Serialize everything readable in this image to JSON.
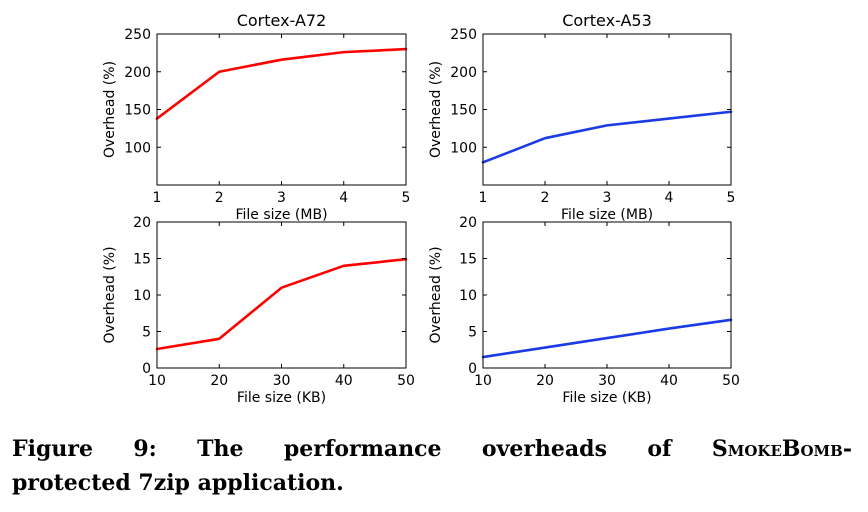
{
  "chart_data": [
    {
      "type": "line",
      "title": "Cortex-A72",
      "xlabel": "File size (MB)",
      "ylabel": "Overhead (%)",
      "x": [
        1,
        2,
        3,
        4,
        5
      ],
      "xlim": [
        1,
        5
      ],
      "ylim": [
        50,
        250
      ],
      "xticks": [
        1,
        2,
        3,
        4,
        5
      ],
      "yticks": [
        100,
        150,
        200,
        250
      ],
      "grid": false,
      "series": [
        {
          "values": [
            138,
            200,
            216,
            226,
            230
          ],
          "color": "#ff0000"
        }
      ]
    },
    {
      "type": "line",
      "title": "Cortex-A53",
      "xlabel": "File size (MB)",
      "ylabel": "Overhead (%)",
      "x": [
        1,
        2,
        3,
        4,
        5
      ],
      "xlim": [
        1,
        5
      ],
      "ylim": [
        50,
        250
      ],
      "xticks": [
        1,
        2,
        3,
        4,
        5
      ],
      "yticks": [
        100,
        150,
        200,
        250
      ],
      "grid": false,
      "series": [
        {
          "values": [
            80,
            112,
            129,
            138,
            147
          ],
          "color": "#1a3be6"
        }
      ]
    },
    {
      "type": "line",
      "title": "",
      "xlabel": "File size (KB)",
      "ylabel": "Overhead (%)",
      "x": [
        10,
        20,
        30,
        40,
        50
      ],
      "xlim": [
        10,
        50
      ],
      "ylim": [
        0,
        20
      ],
      "xticks": [
        10,
        20,
        30,
        40,
        50
      ],
      "yticks": [
        0,
        5,
        10,
        15,
        20
      ],
      "grid": false,
      "series": [
        {
          "values": [
            2.6,
            4.0,
            11.0,
            14.0,
            14.9
          ],
          "color": "#ff0000"
        }
      ]
    },
    {
      "type": "line",
      "title": "",
      "xlabel": "File size (KB)",
      "ylabel": "Overhead (%)",
      "x": [
        10,
        20,
        30,
        40,
        50
      ],
      "xlim": [
        10,
        50
      ],
      "ylim": [
        0,
        20
      ],
      "xticks": [
        10,
        20,
        30,
        40,
        50
      ],
      "yticks": [
        0,
        5,
        10,
        15,
        20
      ],
      "grid": false,
      "series": [
        {
          "values": [
            1.5,
            2.8,
            4.1,
            5.4,
            6.6
          ],
          "color": "#1a3be6"
        }
      ]
    }
  ],
  "caption": {
    "w1": "Figure",
    "w2": "9:",
    "w3": "The",
    "w4": "performance",
    "w5": "overheads",
    "w6": "of",
    "w7": "SmokeBomb-",
    "line2": "protected 7zip application."
  }
}
